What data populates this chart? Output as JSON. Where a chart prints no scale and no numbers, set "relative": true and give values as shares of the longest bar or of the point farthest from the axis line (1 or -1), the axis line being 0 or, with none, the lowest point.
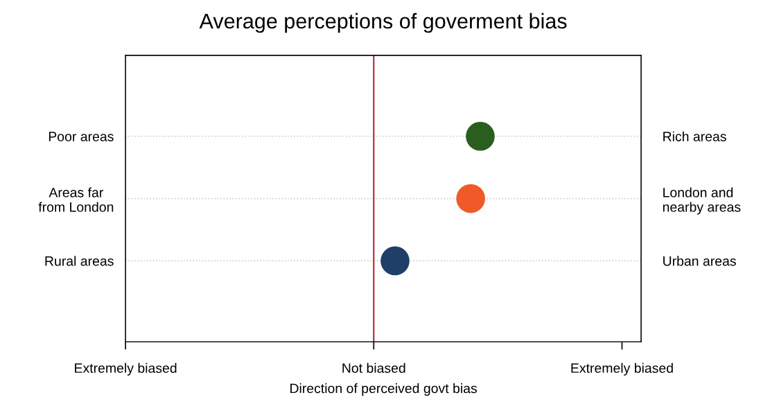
{
  "chart_data": {
    "type": "scatter",
    "orientation": "horizontal",
    "relative": true,
    "title": "Average perceptions of goverment bias",
    "xlabel": "Direction of perceived govt bias",
    "categories": [
      "Poor areas",
      "Areas far\nfrom London",
      "Rural areas"
    ],
    "y2_categories": [
      "Rich areas",
      "London and\nnearby areas",
      "Urban areas"
    ],
    "values": [
      1,
      0.91,
      0.2
    ],
    "colors": [
      "#2a5e1e",
      "#ef5a28",
      "#1f3f66"
    ],
    "annotations": [
      "Extremely biased",
      "Not biased",
      "Extremely biased"
    ],
    "ref_lines": [
      {
        "axis": "x",
        "value": 0,
        "color": "#b0243c"
      }
    ],
    "grid": "y",
    "marker": "circle"
  }
}
